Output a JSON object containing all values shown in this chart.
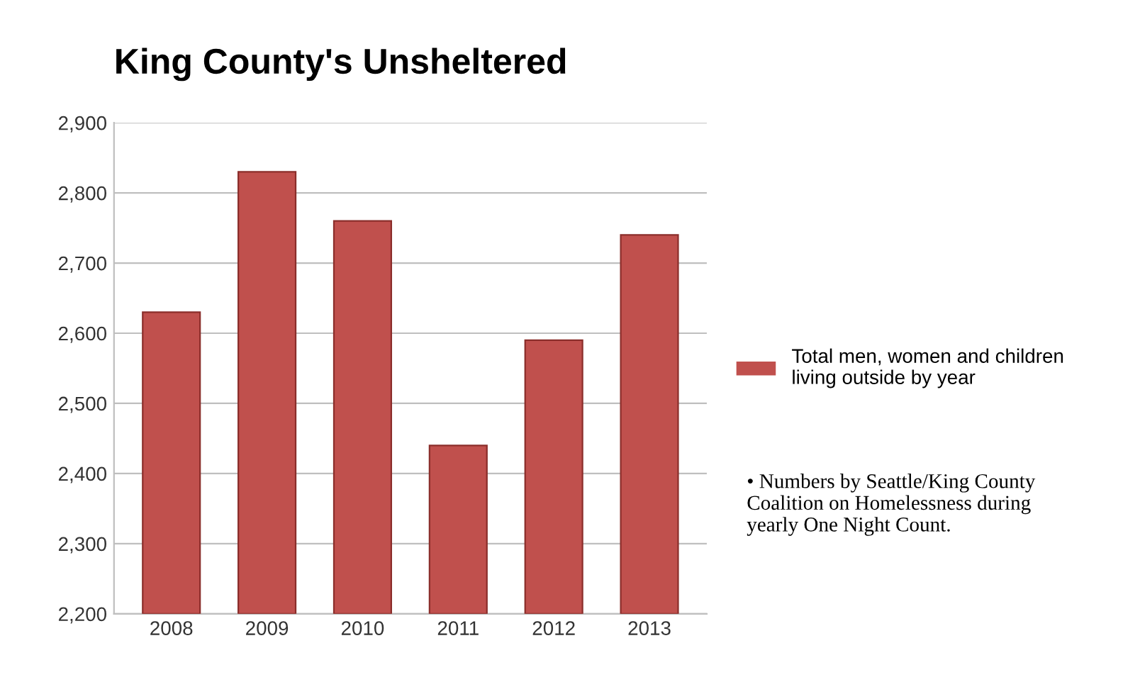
{
  "chart_data": {
    "type": "bar",
    "title": "King County's Unsheltered",
    "categories": [
      "2008",
      "2009",
      "2010",
      "2011",
      "2012",
      "2013"
    ],
    "series": [
      {
        "name": "Total men, women and children\nliving outside by year",
        "color": "#c0504d",
        "values": [
          2630,
          2830,
          2760,
          2440,
          2590,
          2740
        ]
      }
    ],
    "ylim": [
      2200,
      2900
    ],
    "yticks": [
      {
        "value": 2200,
        "label": "2,200"
      },
      {
        "value": 2300,
        "label": "2,300"
      },
      {
        "value": 2400,
        "label": "2,400"
      },
      {
        "value": 2500,
        "label": "2,500"
      },
      {
        "value": 2600,
        "label": "2,600"
      },
      {
        "value": 2700,
        "label": "2,700"
      },
      {
        "value": 2800,
        "label": "2,800"
      },
      {
        "value": 2900,
        "label": "2,900"
      }
    ],
    "grid": "y",
    "legend": "right",
    "annotations": [
      "• Numbers by Seattle/King County\nCoalition on Homelessness during\nyearly One Night Count."
    ]
  }
}
